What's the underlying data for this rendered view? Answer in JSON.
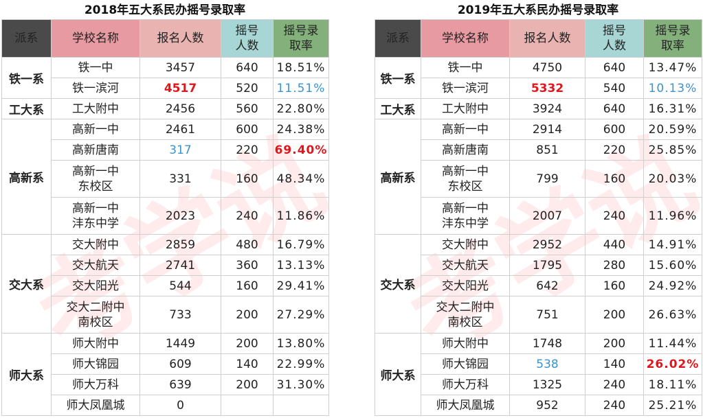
{
  "watermark": "考学说",
  "tables": [
    {
      "title": "2018年五大系民办摇号录取率",
      "headers": {
        "pai": "派系",
        "school": "学校名称",
        "apply": "报名人数",
        "quota_l1": "摇号",
        "quota_l2": "人数",
        "rate_l1": "摇号录",
        "rate_l2": "取率"
      },
      "rows": [
        {
          "pai": "铁一系",
          "school_l1": "铁一中",
          "school_l2": "",
          "apply": "3457",
          "quota": "640",
          "rate": "18.51%"
        },
        {
          "pai": "",
          "school_l1": "铁一滨河",
          "school_l2": "",
          "apply": "4517",
          "quota": "520",
          "rate": "11.51%"
        },
        {
          "pai": "工大系",
          "school_l1": "工大附中",
          "school_l2": "",
          "apply": "2456",
          "quota": "560",
          "rate": "22.80%"
        },
        {
          "pai": "高新系",
          "school_l1": "高新一中",
          "school_l2": "",
          "apply": "2461",
          "quota": "600",
          "rate": "24.38%"
        },
        {
          "pai": "",
          "school_l1": "高新唐南",
          "school_l2": "",
          "apply": "317",
          "quota": "220",
          "rate": "69.40%"
        },
        {
          "pai": "",
          "school_l1": "高新一中",
          "school_l2": "东校区",
          "apply": "331",
          "quota": "160",
          "rate": "48.34%"
        },
        {
          "pai": "",
          "school_l1": "高新一中",
          "school_l2": "沣东中学",
          "apply": "2023",
          "quota": "240",
          "rate": "11.86%"
        },
        {
          "pai": "交大系",
          "school_l1": "交大附中",
          "school_l2": "",
          "apply": "2859",
          "quota": "480",
          "rate": "16.79%"
        },
        {
          "pai": "",
          "school_l1": "交大航天",
          "school_l2": "",
          "apply": "2741",
          "quota": "360",
          "rate": "13.13%"
        },
        {
          "pai": "",
          "school_l1": "交大阳光",
          "school_l2": "",
          "apply": "544",
          "quota": "160",
          "rate": "29.41%"
        },
        {
          "pai": "",
          "school_l1": "交大二附中",
          "school_l2": "南校区",
          "apply": "733",
          "quota": "200",
          "rate": "27.29%"
        },
        {
          "pai": "师大系",
          "school_l1": "师大附中",
          "school_l2": "",
          "apply": "1449",
          "quota": "200",
          "rate": "13.80%"
        },
        {
          "pai": "",
          "school_l1": "师大锦园",
          "school_l2": "",
          "apply": "609",
          "quota": "140",
          "rate": "22.99%"
        },
        {
          "pai": "",
          "school_l1": "师大万科",
          "school_l2": "",
          "apply": "639",
          "quota": "200",
          "rate": "31.30%"
        },
        {
          "pai": "",
          "school_l1": "师大凤凰城",
          "school_l2": "",
          "apply": "0",
          "quota": "",
          "rate": ""
        }
      ],
      "highlights": {
        "red": [
          [
            1,
            "apply"
          ],
          [
            4,
            "rate"
          ]
        ],
        "blue": [
          [
            1,
            "rate"
          ],
          [
            4,
            "apply"
          ]
        ]
      }
    },
    {
      "title": "2019年五大系民办摇号录取率",
      "headers": {
        "pai": "派系",
        "school": "学校名称",
        "apply": "报名人数",
        "quota_l1": "摇号",
        "quota_l2": "人数",
        "rate_l1": "摇号录",
        "rate_l2": "取率"
      },
      "rows": [
        {
          "pai": "铁一系",
          "school_l1": "铁一中",
          "school_l2": "",
          "apply": "4750",
          "quota": "640",
          "rate": "13.47%"
        },
        {
          "pai": "",
          "school_l1": "铁一滨河",
          "school_l2": "",
          "apply": "5332",
          "quota": "540",
          "rate": "10.13%"
        },
        {
          "pai": "工大系",
          "school_l1": "工大附中",
          "school_l2": "",
          "apply": "3924",
          "quota": "640",
          "rate": "16.31%"
        },
        {
          "pai": "高新系",
          "school_l1": "高新一中",
          "school_l2": "",
          "apply": "2914",
          "quota": "600",
          "rate": "20.59%"
        },
        {
          "pai": "",
          "school_l1": "高新唐南",
          "school_l2": "",
          "apply": "851",
          "quota": "220",
          "rate": "25.85%"
        },
        {
          "pai": "",
          "school_l1": "高新一中",
          "school_l2": "东校区",
          "apply": "799",
          "quota": "160",
          "rate": "20.03%"
        },
        {
          "pai": "",
          "school_l1": "高新一中",
          "school_l2": "沣东中学",
          "apply": "2007",
          "quota": "240",
          "rate": "11.96%"
        },
        {
          "pai": "交大系",
          "school_l1": "交大附中",
          "school_l2": "",
          "apply": "2952",
          "quota": "440",
          "rate": "14.91%"
        },
        {
          "pai": "",
          "school_l1": "交大航天",
          "school_l2": "",
          "apply": "1795",
          "quota": "280",
          "rate": "15.60%"
        },
        {
          "pai": "",
          "school_l1": "交大阳光",
          "school_l2": "",
          "apply": "642",
          "quota": "160",
          "rate": "24.92%"
        },
        {
          "pai": "",
          "school_l1": "交大二附中",
          "school_l2": "南校区",
          "apply": "751",
          "quota": "200",
          "rate": "26.63%"
        },
        {
          "pai": "师大系",
          "school_l1": "师大附中",
          "school_l2": "",
          "apply": "1748",
          "quota": "200",
          "rate": "11.44%"
        },
        {
          "pai": "",
          "school_l1": "师大锦园",
          "school_l2": "",
          "apply": "538",
          "quota": "140",
          "rate": "26.02%"
        },
        {
          "pai": "",
          "school_l1": "师大万科",
          "school_l2": "",
          "apply": "1325",
          "quota": "240",
          "rate": "18.11%"
        },
        {
          "pai": "",
          "school_l1": "师大凤凰城",
          "school_l2": "",
          "apply": "952",
          "quota": "240",
          "rate": "25.21%"
        }
      ],
      "highlights": {
        "red": [
          [
            1,
            "apply"
          ],
          [
            12,
            "rate"
          ]
        ],
        "blue": [
          [
            1,
            "rate"
          ],
          [
            12,
            "apply"
          ]
        ]
      }
    }
  ]
}
